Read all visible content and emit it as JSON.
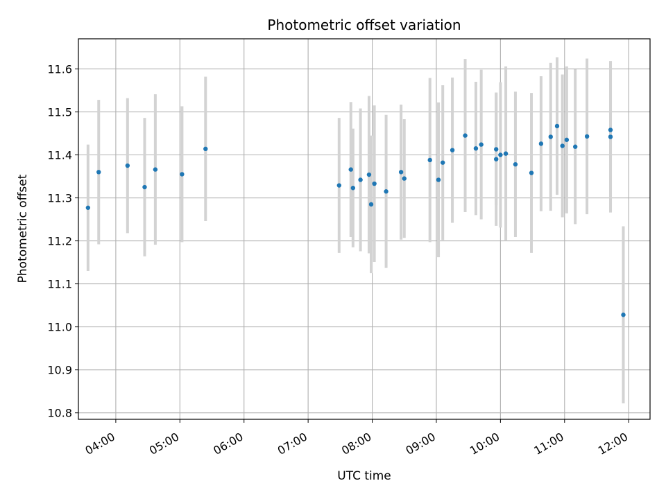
{
  "chart_data": {
    "type": "scatter",
    "title": "Photometric offset variation",
    "xlabel": "UTC time",
    "ylabel": "Photometric offset",
    "grid": true,
    "xlim": [
      "03:25",
      "12:20"
    ],
    "ylim": [
      10.785,
      11.67
    ],
    "xticks": [
      "04:00",
      "05:00",
      "06:00",
      "07:00",
      "08:00",
      "09:00",
      "10:00",
      "11:00",
      "12:00"
    ],
    "yticks": [
      "10.8",
      "10.9",
      "11.0",
      "11.1",
      "11.2",
      "11.3",
      "11.4",
      "11.5",
      "11.6"
    ],
    "colors": {
      "points": "#1f77b4",
      "errorbars": "#d3d3d3",
      "grid": "#b0b0b0"
    },
    "points": [
      {
        "x": "03:34",
        "y": 11.277,
        "err": 0.147
      },
      {
        "x": "03:44",
        "y": 11.36,
        "err": 0.168
      },
      {
        "x": "04:11",
        "y": 11.375,
        "err": 0.157
      },
      {
        "x": "04:27",
        "y": 11.325,
        "err": 0.161
      },
      {
        "x": "04:37",
        "y": 11.366,
        "err": 0.175
      },
      {
        "x": "05:02",
        "y": 11.355,
        "err": 0.158
      },
      {
        "x": "05:24",
        "y": 11.414,
        "err": 0.168
      },
      {
        "x": "07:29",
        "y": 11.329,
        "err": 0.157
      },
      {
        "x": "07:40",
        "y": 11.366,
        "err": 0.157
      },
      {
        "x": "07:42",
        "y": 11.323,
        "err": 0.138
      },
      {
        "x": "07:49",
        "y": 11.342,
        "err": 0.166
      },
      {
        "x": "07:57",
        "y": 11.354,
        "err": 0.183
      },
      {
        "x": "07:59",
        "y": 11.285,
        "err": 0.16
      },
      {
        "x": "08:02",
        "y": 11.333,
        "err": 0.182
      },
      {
        "x": "08:13",
        "y": 11.315,
        "err": 0.178
      },
      {
        "x": "08:27",
        "y": 11.36,
        "err": 0.157
      },
      {
        "x": "08:30",
        "y": 11.345,
        "err": 0.138
      },
      {
        "x": "08:54",
        "y": 11.388,
        "err": 0.191
      },
      {
        "x": "09:02",
        "y": 11.342,
        "err": 0.18
      },
      {
        "x": "09:06",
        "y": 11.382,
        "err": 0.18
      },
      {
        "x": "09:15",
        "y": 11.411,
        "err": 0.169
      },
      {
        "x": "09:27",
        "y": 11.445,
        "err": 0.178
      },
      {
        "x": "09:37",
        "y": 11.415,
        "err": 0.155
      },
      {
        "x": "09:42",
        "y": 11.424,
        "err": 0.174
      },
      {
        "x": "09:56",
        "y": 11.413,
        "err": 0.13
      },
      {
        "x": "09:56",
        "y": 11.39,
        "err": 0.155
      },
      {
        "x": "10:00",
        "y": 11.4,
        "err": 0.169
      },
      {
        "x": "10:05",
        "y": 11.403,
        "err": 0.203
      },
      {
        "x": "10:14",
        "y": 11.378,
        "err": 0.169
      },
      {
        "x": "10:29",
        "y": 11.358,
        "err": 0.186
      },
      {
        "x": "10:38",
        "y": 11.426,
        "err": 0.157
      },
      {
        "x": "10:47",
        "y": 11.442,
        "err": 0.172
      },
      {
        "x": "10:53",
        "y": 11.467,
        "err": 0.16
      },
      {
        "x": "10:58",
        "y": 11.421,
        "err": 0.166
      },
      {
        "x": "11:02",
        "y": 11.435,
        "err": 0.171
      },
      {
        "x": "11:10",
        "y": 11.419,
        "err": 0.18
      },
      {
        "x": "11:21",
        "y": 11.443,
        "err": 0.181
      },
      {
        "x": "11:43",
        "y": 11.442,
        "err": 0.176
      },
      {
        "x": "11:43",
        "y": 11.458,
        "err": 0.16
      },
      {
        "x": "11:55",
        "y": 11.028,
        "err": 0.206
      }
    ]
  }
}
